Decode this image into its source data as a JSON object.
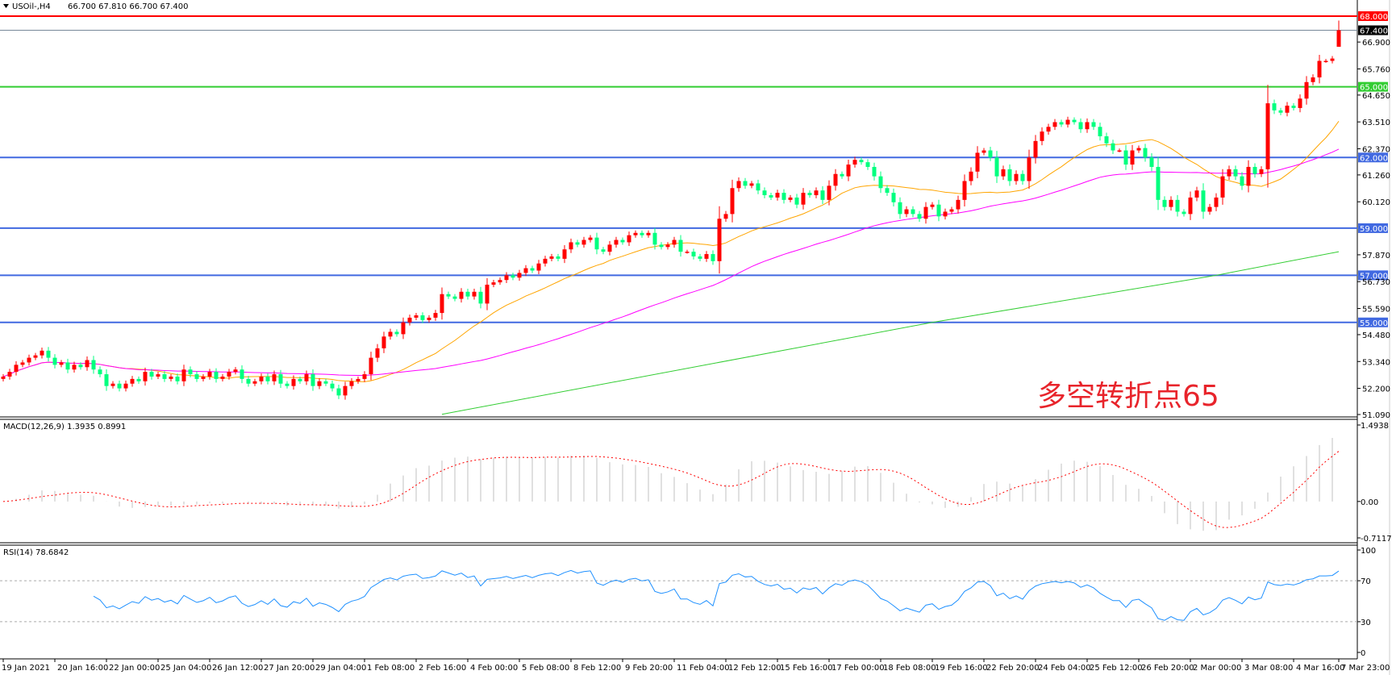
{
  "header": {
    "symbol": "USOil-,H4",
    "ohlc": "66.700 67.810 66.700 67.400",
    "open": 66.7,
    "high": 67.81,
    "low": 66.7,
    "close": 67.4
  },
  "annotation": "多空转折点65",
  "colors": {
    "up": "#ff0000",
    "down": "#00ff7f",
    "ma_fast": "#ffa500",
    "ma_mid": "#ff00ff",
    "ma_long": "#32cd32",
    "level_blue": "#4169e1",
    "level_red": "#ff0000",
    "level_green": "#32cd32",
    "price_line": "#778899",
    "rsi": "#1e90ff",
    "macd_hist": "#c0c0c0",
    "macd_signal": "#ff0000"
  },
  "chart_data": [
    {
      "type": "candlestick",
      "title": "USOil-,H4",
      "ylim": [
        51.09,
        68.0
      ],
      "y_ticks": [
        "66.900",
        "65.760",
        "64.650",
        "63.510",
        "62.370",
        "61.260",
        "60.120",
        "57.870",
        "56.730",
        "55.590",
        "54.480",
        "53.340",
        "52.200",
        "51.090"
      ],
      "x_ticks": [
        "19 Jan 2021",
        "20 Jan 16:00",
        "22 Jan 00:00",
        "25 Jan 04:00",
        "26 Jan 12:00",
        "27 Jan 20:00",
        "29 Jan 04:00",
        "1 Feb 08:00",
        "2 Feb 16:00",
        "4 Feb 00:00",
        "5 Feb 08:00",
        "8 Feb 12:00",
        "9 Feb 20:00",
        "11 Feb 04:00",
        "12 Feb 12:00",
        "15 Feb 16:00",
        "17 Feb 00:00",
        "18 Feb 08:00",
        "19 Feb 16:00",
        "22 Feb 20:00",
        "24 Feb 04:00",
        "25 Feb 12:00",
        "26 Feb 20:00",
        "2 Mar 00:00",
        "3 Mar 08:00",
        "4 Mar 16:00",
        "7 Mar 23:00"
      ],
      "closes": [
        52.7,
        52.9,
        53.2,
        53.3,
        53.5,
        53.6,
        53.8,
        53.5,
        53.2,
        53.3,
        53.0,
        53.2,
        53.1,
        53.4,
        53.0,
        52.8,
        52.3,
        52.4,
        52.2,
        52.4,
        52.6,
        52.5,
        52.9,
        52.7,
        52.8,
        52.6,
        52.7,
        52.5,
        53.0,
        52.8,
        52.6,
        52.7,
        52.9,
        52.6,
        52.7,
        52.9,
        53.0,
        52.6,
        52.4,
        52.5,
        52.7,
        52.5,
        52.8,
        52.4,
        52.3,
        52.6,
        52.5,
        52.8,
        52.3,
        52.5,
        52.4,
        52.2,
        51.9,
        52.3,
        52.5,
        52.6,
        52.8,
        53.5,
        53.9,
        54.4,
        54.6,
        54.5,
        55.0,
        55.2,
        55.3,
        55.1,
        55.2,
        55.4,
        56.2,
        56.1,
        56.0,
        56.3,
        56.1,
        56.3,
        55.8,
        56.6,
        56.7,
        56.8,
        57.0,
        56.9,
        57.1,
        57.3,
        57.2,
        57.5,
        57.7,
        57.8,
        57.7,
        58.1,
        58.4,
        58.3,
        58.5,
        58.6,
        58.1,
        58.0,
        58.3,
        58.5,
        58.4,
        58.7,
        58.8,
        58.7,
        58.8,
        58.3,
        58.2,
        58.3,
        58.5,
        58.0,
        58.0,
        57.8,
        57.7,
        57.9,
        57.6,
        59.4,
        59.6,
        60.7,
        61.0,
        60.8,
        60.9,
        60.6,
        60.4,
        60.3,
        60.5,
        60.2,
        60.3,
        60.0,
        60.5,
        60.4,
        60.6,
        60.2,
        60.8,
        61.3,
        61.2,
        61.7,
        61.9,
        61.8,
        61.6,
        61.2,
        60.7,
        60.5,
        60.1,
        59.6,
        59.8,
        59.6,
        59.4,
        59.9,
        60.0,
        59.5,
        59.7,
        59.8,
        60.2,
        61.0,
        61.4,
        62.2,
        62.3,
        62.0,
        61.2,
        61.5,
        61.0,
        61.3,
        61.0,
        62.0,
        62.7,
        63.1,
        63.3,
        63.5,
        63.4,
        63.6,
        63.5,
        63.2,
        63.5,
        63.3,
        62.9,
        62.6,
        62.3,
        62.3,
        61.7,
        62.3,
        62.4,
        62.0,
        61.6,
        60.2,
        59.9,
        60.2,
        59.7,
        59.6,
        60.3,
        60.6,
        59.7,
        59.9,
        60.3,
        61.2,
        61.5,
        61.2,
        60.8,
        61.6,
        61.3,
        61.5,
        64.3,
        64.0,
        63.9,
        64.2,
        64.1,
        64.5,
        65.2,
        65.4,
        66.1,
        66.1,
        66.2,
        67.4
      ],
      "ma_long_points": [
        [
          68,
          51.1
        ],
        [
          144,
          55.0
        ],
        [
          188,
          57.0
        ],
        [
          207,
          58.0
        ]
      ],
      "levels": [
        {
          "value": 68.0,
          "label": "68.000",
          "color": "#ff0000"
        },
        {
          "value": 67.4,
          "label": "67.400",
          "color": "#000000",
          "line": "#778899"
        },
        {
          "value": 65.0,
          "label": "65.000",
          "color": "#32cd32"
        },
        {
          "value": 62.0,
          "label": "62.000",
          "color": "#4169e1"
        },
        {
          "value": 59.0,
          "label": "59.000",
          "color": "#4169e1"
        },
        {
          "value": 57.0,
          "label": "57.000",
          "color": "#4169e1"
        },
        {
          "value": 55.0,
          "label": "55.000",
          "color": "#4169e1"
        }
      ]
    },
    {
      "type": "bar+line",
      "title": "MACD(12,26,9) 1.3935 0.8991",
      "ylim": [
        -0.7117,
        1.4938
      ],
      "y_ticks": [
        "1.4938",
        "0.00",
        "-0.7117"
      ]
    },
    {
      "type": "line",
      "title": "RSI(14) 78.6842",
      "ylim": [
        0,
        100
      ],
      "y_ticks": [
        "100",
        "70",
        "30",
        "0"
      ],
      "levels": [
        70,
        30
      ]
    }
  ]
}
